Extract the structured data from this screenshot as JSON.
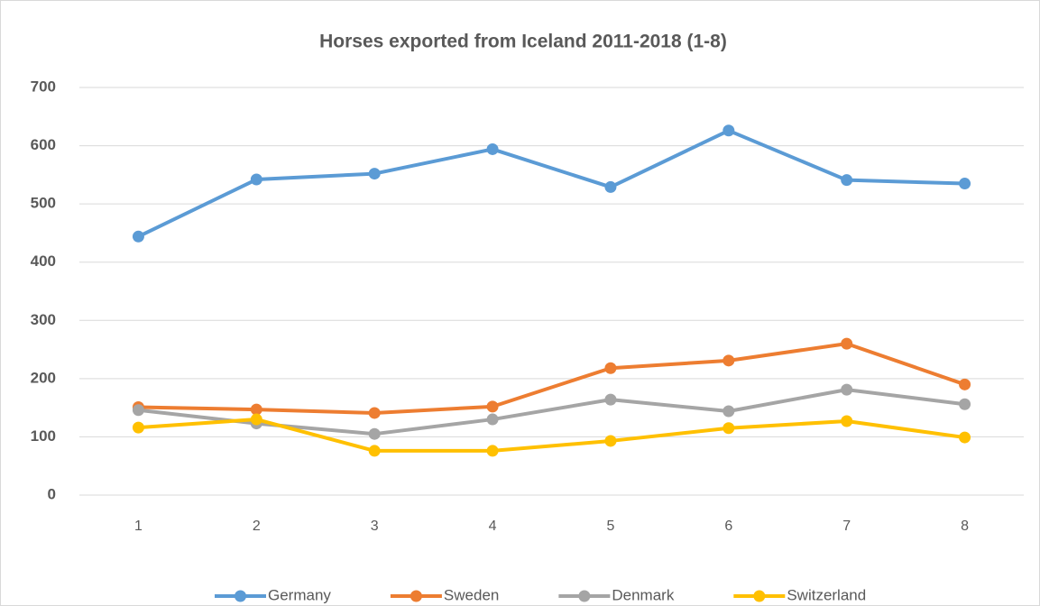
{
  "chart_data": {
    "type": "line",
    "title": "Horses exported from Iceland 2011-2018 (1-8)",
    "categories": [
      "1",
      "2",
      "3",
      "4",
      "5",
      "6",
      "7",
      "8"
    ],
    "series": [
      {
        "name": "Germany",
        "color": "#5b9bd5",
        "values": [
          444,
          542,
          552,
          594,
          529,
          626,
          541,
          535
        ]
      },
      {
        "name": "Sweden",
        "color": "#ed7d31",
        "values": [
          151,
          147,
          141,
          152,
          218,
          231,
          260,
          190
        ]
      },
      {
        "name": "Denmark",
        "color": "#a5a5a5",
        "values": [
          146,
          123,
          105,
          130,
          164,
          144,
          181,
          156
        ]
      },
      {
        "name": "Switzerland",
        "color": "#ffc000",
        "values": [
          116,
          130,
          76,
          76,
          93,
          115,
          127,
          99
        ]
      }
    ],
    "ylim": [
      0,
      700
    ],
    "yticks": [
      0,
      100,
      200,
      300,
      400,
      500,
      600,
      700
    ],
    "grid": true,
    "legend": "bottom"
  }
}
